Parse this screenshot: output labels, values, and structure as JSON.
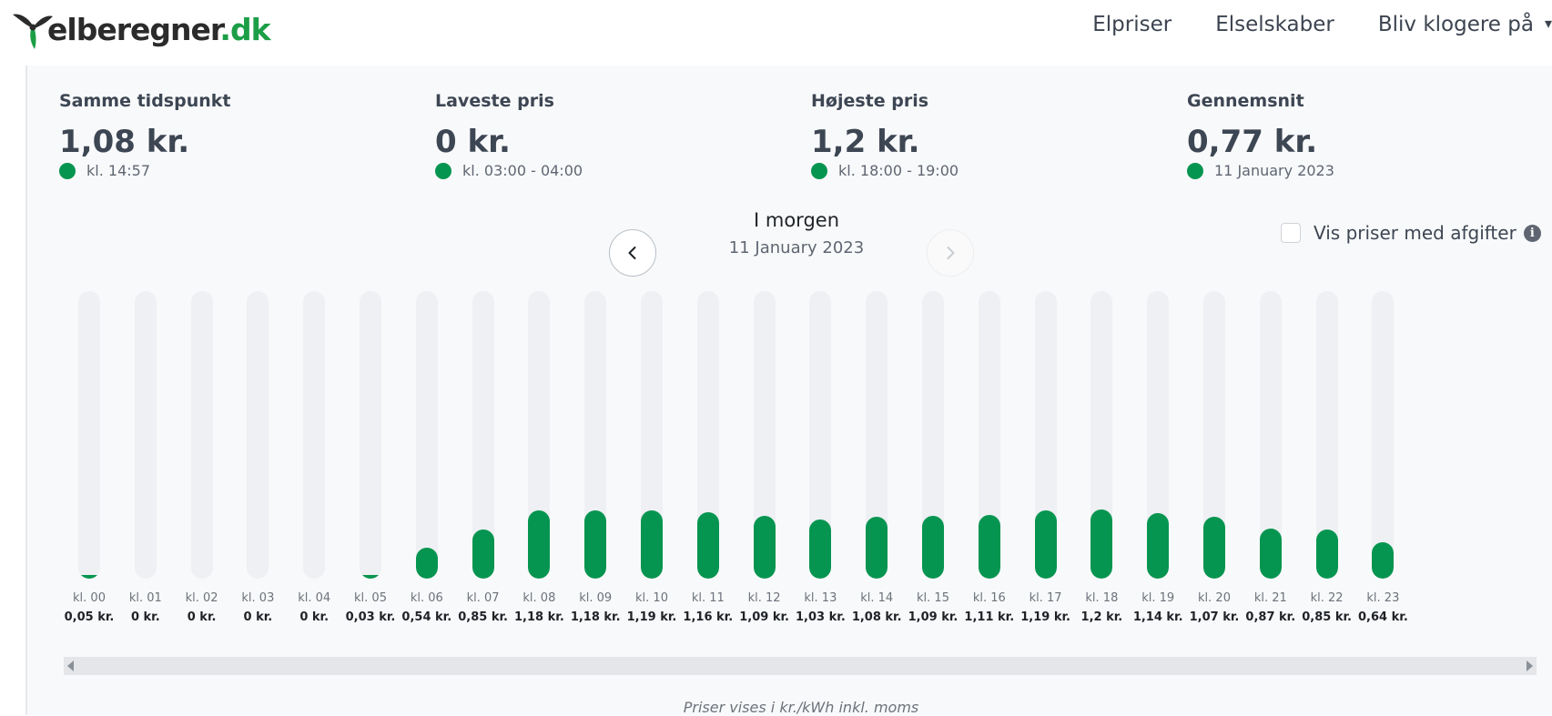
{
  "header": {
    "logo_main": "elberegner",
    "logo_tld": ".dk",
    "nav": [
      {
        "label": "Elpriser"
      },
      {
        "label": "Elselskaber"
      },
      {
        "label": "Bliv klogere på"
      }
    ]
  },
  "stats": [
    {
      "label": "Samme tidspunkt",
      "value": "1,08 kr.",
      "sub": "kl. 14:57"
    },
    {
      "label": "Laveste pris",
      "value": "0 kr.",
      "sub": "kl. 03:00 - 04:00"
    },
    {
      "label": "Højeste pris",
      "value": "1,2 kr.",
      "sub": "kl. 18:00 - 19:00"
    },
    {
      "label": "Gennemsnit",
      "value": "0,77 kr.",
      "sub": "11 January 2023"
    }
  ],
  "day_nav": {
    "title": "I morgen",
    "date": "11 January 2023"
  },
  "tax_toggle": {
    "label": "Vis priser med afgifter",
    "checked": false
  },
  "colors": {
    "accent": "#069550",
    "track": "#eef0f4",
    "logo_green": "#1c9e47"
  },
  "chart_data": {
    "type": "bar",
    "categories": [
      "kl. 00",
      "kl. 01",
      "kl. 02",
      "kl. 03",
      "kl. 04",
      "kl. 05",
      "kl. 06",
      "kl. 07",
      "kl. 08",
      "kl. 09",
      "kl. 10",
      "kl. 11",
      "kl. 12",
      "kl. 13",
      "kl. 14",
      "kl. 15",
      "kl. 16",
      "kl. 17",
      "kl. 18",
      "kl. 19",
      "kl. 20",
      "kl. 21",
      "kl. 22",
      "kl. 23"
    ],
    "values": [
      0.05,
      0,
      0,
      0,
      0,
      0.03,
      0.54,
      0.85,
      1.18,
      1.18,
      1.19,
      1.16,
      1.09,
      1.03,
      1.08,
      1.09,
      1.11,
      1.19,
      1.2,
      1.14,
      1.07,
      0.87,
      0.85,
      0.64
    ],
    "value_labels": [
      "0,05 kr.",
      "0 kr.",
      "0 kr.",
      "0 kr.",
      "0 kr.",
      "0,03 kr.",
      "0,54 kr.",
      "0,85 kr.",
      "1,18 kr.",
      "1,18 kr.",
      "1,19 kr.",
      "1,16 kr.",
      "1,09 kr.",
      "1,03 kr.",
      "1,08 kr.",
      "1,09 kr.",
      "1,11 kr.",
      "1,19 kr.",
      "1,2 kr.",
      "1,14 kr.",
      "1,07 kr.",
      "0,87 kr.",
      "0,85 kr.",
      "0,64 kr."
    ],
    "ylim": [
      0,
      5
    ]
  },
  "footnote": "Priser vises i kr./kWh inkl. moms"
}
